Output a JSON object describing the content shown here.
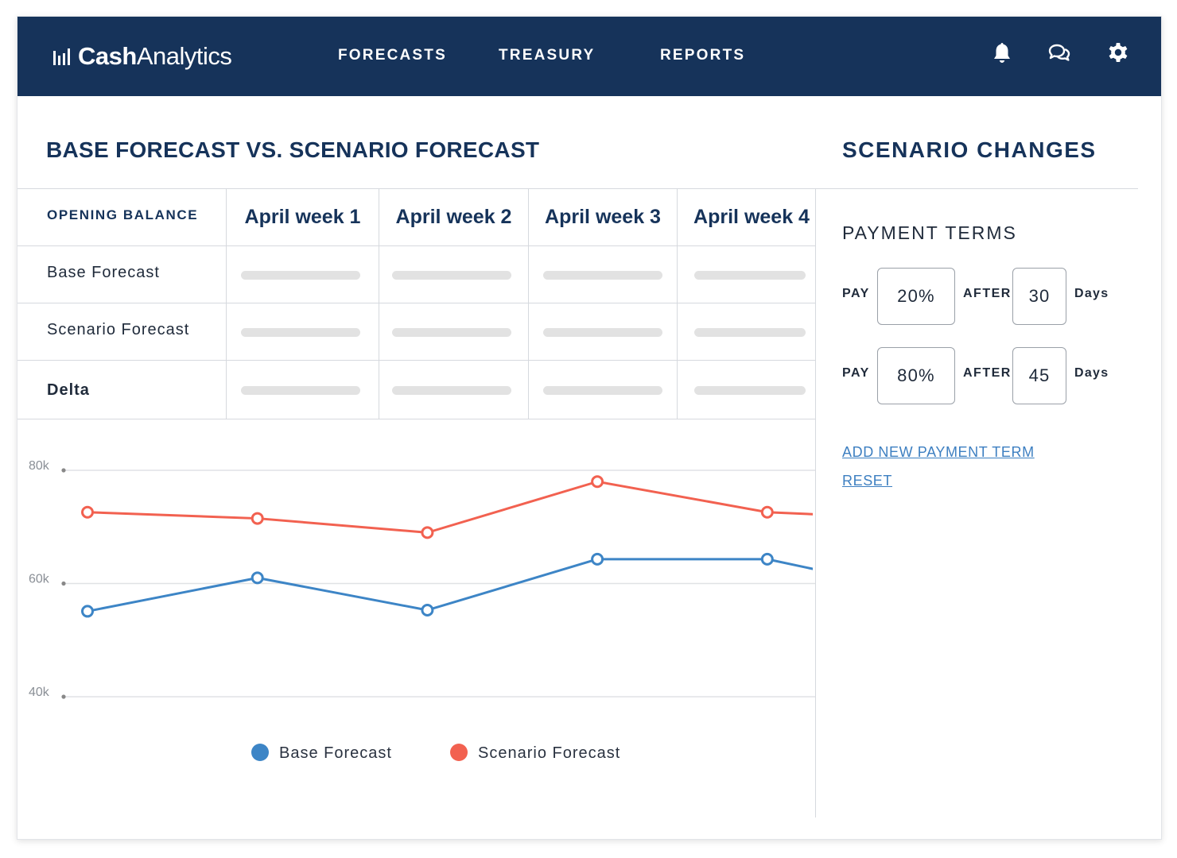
{
  "app": {
    "logo_prefix": "Cash",
    "logo_suffix": "Analytics",
    "nav": [
      "FORECASTS",
      "TREASURY",
      "REPORTS"
    ],
    "icons": [
      "bell-icon",
      "chat-icon",
      "gear-icon"
    ],
    "brand_color": "#16335a"
  },
  "main": {
    "title": "BASE FORECAST VS. SCENARIO FORECAST",
    "table": {
      "header_first": "OPENING BALANCE",
      "weeks": [
        "April week 1",
        "April week 2",
        "April week 3",
        "April week 4"
      ],
      "rows": [
        "Base Forecast",
        "Scenario Forecast",
        "Delta"
      ]
    }
  },
  "chart_data": {
    "type": "line",
    "x": [
      1,
      2,
      3,
      4,
      5,
      6
    ],
    "ylim": [
      40000,
      80000
    ],
    "yticks": [
      "40k",
      "60k",
      "80k"
    ],
    "grid": true,
    "legend_position": "bottom",
    "series": [
      {
        "name": "Base Forecast",
        "color": "#3d85c6",
        "values": [
          55100,
          61000,
          55300,
          64300,
          64300,
          57900
        ]
      },
      {
        "name": "Scenario Forecast",
        "color": "#f26150",
        "values": [
          72600,
          71500,
          69000,
          78000,
          72600,
          71300
        ]
      }
    ]
  },
  "panel": {
    "title": "SCENARIO CHANGES",
    "subtitle": "PAYMENT TERMS",
    "pay_label": "PAY",
    "after_label": "AFTER",
    "days_label": "Days",
    "terms": [
      {
        "percent": "20%",
        "days": "30"
      },
      {
        "percent": "80%",
        "days": "45"
      }
    ],
    "add_link": "ADD NEW PAYMENT TERM",
    "reset_link": "RESET"
  }
}
